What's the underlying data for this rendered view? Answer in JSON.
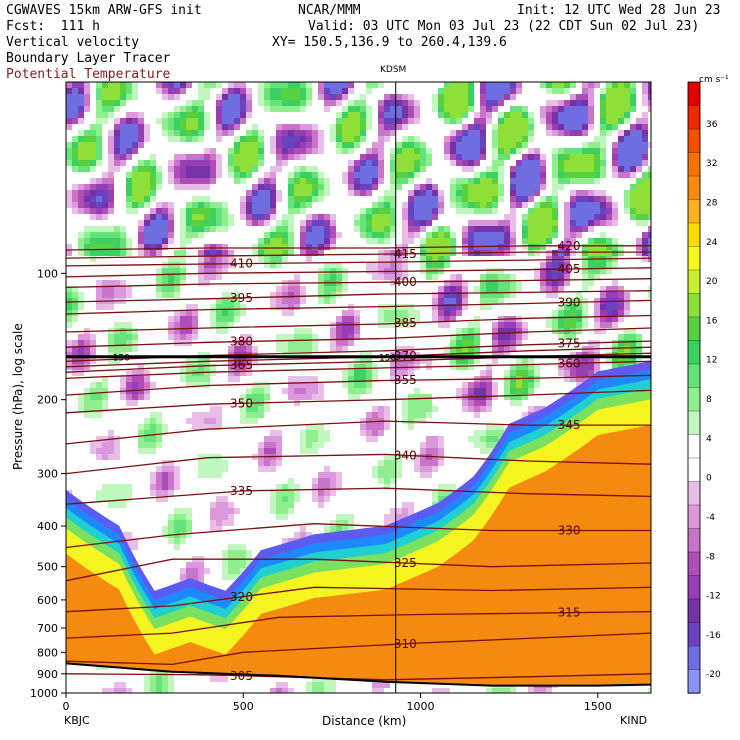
{
  "header": {
    "left_line1": "CGWAVES 15km ARW-GFS init",
    "left_line2": "Fcst:  111 h",
    "left_line3": "Vertical velocity",
    "left_line4": "Boundary Layer Tracer",
    "left_line5": "Potential Temperature",
    "center_line1": "NCAR/MMM",
    "init_text": "Init: 12 UTC Wed 28 Jun 23",
    "valid_text": "Valid: 03 UTC Mon 03 Jul 23 (22 CDT Sun 02 Jul 23)",
    "xy_text": "XY= 150.5,136.9 to 260.4,139.6",
    "station_mid": "KDSM",
    "station_left": "KBJC",
    "station_right": "KIND"
  },
  "chart_data": {
    "type": "heatmap",
    "xlabel": "Distance (km)",
    "ylabel": "Pressure (hPa), log scale",
    "xlim": [
      0,
      1650
    ],
    "x_ticks": [
      0,
      500,
      1000,
      1500
    ],
    "ylim_hpa": [
      1000,
      35
    ],
    "y_ticks": [
      100,
      200,
      300,
      400,
      500,
      600,
      700,
      800,
      900,
      1000
    ],
    "y_log": true,
    "vertical_marker_km": 930,
    "horizontal_line_hpa": 158,
    "horizontal_line_label": "150",
    "colorbar": {
      "unit": "cm s⁻¹",
      "tick_labels": [
        "36",
        "32",
        "28",
        "24",
        "20",
        "16",
        "12",
        "8",
        "4",
        "0",
        "-4",
        "-8",
        "-12",
        "-16",
        "-20"
      ],
      "colors": [
        "#e00000",
        "#ee2800",
        "#f54f00",
        "#f87000",
        "#fb8a10",
        "#fdb020",
        "#fcdc00",
        "#f8f820",
        "#c8f030",
        "#8ee038",
        "#58d040",
        "#3cd060",
        "#66e27a",
        "#8fef8f",
        "#bff7bf",
        "#ffffff",
        "#ffffff",
        "#e8bde8",
        "#dc98dc",
        "#c874c8",
        "#b04cb8",
        "#9440b4",
        "#7434a8",
        "#6a44c0",
        "#6e6ee0",
        "#8a92f2"
      ]
    },
    "theta_contours": [
      {
        "label": "305",
        "points": [
          [
            0,
            900
          ],
          [
            400,
            905
          ],
          [
            900,
            930
          ],
          [
            1300,
            915
          ],
          [
            1650,
            900
          ]
        ]
      },
      {
        "label": "310",
        "points": [
          [
            0,
            840
          ],
          [
            300,
            855
          ],
          [
            500,
            800
          ],
          [
            1000,
            760
          ],
          [
            1650,
            720
          ]
        ]
      },
      {
        "label": "315",
        "points": [
          [
            0,
            740
          ],
          [
            300,
            720
          ],
          [
            600,
            660
          ],
          [
            1000,
            650
          ],
          [
            1650,
            640
          ]
        ]
      },
      {
        "label": "320",
        "points": [
          [
            0,
            640
          ],
          [
            300,
            620
          ],
          [
            700,
            560
          ],
          [
            1200,
            570
          ],
          [
            1650,
            560
          ]
        ]
      },
      {
        "label": "325",
        "points": [
          [
            0,
            540
          ],
          [
            300,
            480
          ],
          [
            700,
            480
          ],
          [
            1200,
            500
          ],
          [
            1650,
            490
          ]
        ]
      },
      {
        "label": "330",
        "points": [
          [
            0,
            450
          ],
          [
            300,
            420
          ],
          [
            700,
            395
          ],
          [
            1200,
            410
          ],
          [
            1650,
            410
          ]
        ]
      },
      {
        "label": "335",
        "points": [
          [
            0,
            355
          ],
          [
            500,
            330
          ],
          [
            900,
            325
          ],
          [
            1300,
            335
          ],
          [
            1650,
            340
          ]
        ]
      },
      {
        "label": "340",
        "points": [
          [
            0,
            300
          ],
          [
            400,
            275
          ],
          [
            900,
            270
          ],
          [
            1300,
            280
          ],
          [
            1650,
            285
          ]
        ]
      },
      {
        "label": "345",
        "points": [
          [
            0,
            255
          ],
          [
            400,
            235
          ],
          [
            900,
            225
          ],
          [
            1300,
            230
          ],
          [
            1650,
            230
          ]
        ]
      },
      {
        "label": "350",
        "points": [
          [
            0,
            215
          ],
          [
            400,
            205
          ],
          [
            900,
            200
          ],
          [
            1300,
            195
          ],
          [
            1650,
            190
          ]
        ]
      },
      {
        "label": "355",
        "points": [
          [
            0,
            195
          ],
          [
            400,
            185
          ],
          [
            900,
            180
          ],
          [
            1300,
            178
          ],
          [
            1650,
            175
          ]
        ]
      },
      {
        "label": "360",
        "points": [
          [
            0,
            178
          ],
          [
            400,
            172
          ],
          [
            900,
            168
          ],
          [
            1300,
            165
          ],
          [
            1650,
            162
          ]
        ]
      },
      {
        "label": "365",
        "points": [
          [
            0,
            172
          ],
          [
            400,
            166
          ],
          [
            900,
            162
          ],
          [
            1300,
            158
          ],
          [
            1650,
            155
          ]
        ]
      },
      {
        "label": "370",
        "points": [
          [
            0,
            167
          ],
          [
            400,
            162
          ],
          [
            900,
            158
          ],
          [
            1300,
            153
          ],
          [
            1650,
            150
          ]
        ]
      },
      {
        "label": "375",
        "points": [
          [
            0,
            162
          ],
          [
            400,
            157
          ],
          [
            900,
            153
          ],
          [
            1300,
            148
          ],
          [
            1650,
            145
          ]
        ]
      },
      {
        "label": "380",
        "points": [
          [
            0,
            150
          ],
          [
            400,
            146
          ],
          [
            900,
            143
          ],
          [
            1300,
            138
          ],
          [
            1650,
            135
          ]
        ]
      },
      {
        "label": "385",
        "points": [
          [
            0,
            138
          ],
          [
            400,
            135
          ],
          [
            900,
            132
          ],
          [
            1300,
            128
          ],
          [
            1650,
            126
          ]
        ]
      },
      {
        "label": "390",
        "points": [
          [
            0,
            125
          ],
          [
            400,
            122
          ],
          [
            900,
            120
          ],
          [
            1300,
            118
          ],
          [
            1650,
            116
          ]
        ]
      },
      {
        "label": "395",
        "points": [
          [
            0,
            117
          ],
          [
            400,
            115
          ],
          [
            900,
            112
          ],
          [
            1300,
            111
          ],
          [
            1650,
            110
          ]
        ]
      },
      {
        "label": "400",
        "points": [
          [
            0,
            108
          ],
          [
            400,
            106
          ],
          [
            900,
            105
          ],
          [
            1300,
            104
          ],
          [
            1650,
            103
          ]
        ]
      },
      {
        "label": "405",
        "points": [
          [
            0,
            102
          ],
          [
            400,
            100
          ],
          [
            900,
            99
          ],
          [
            1300,
            98
          ],
          [
            1650,
            97
          ]
        ]
      },
      {
        "label": "410",
        "points": [
          [
            0,
            96
          ],
          [
            400,
            95
          ],
          [
            900,
            94
          ],
          [
            1300,
            93
          ],
          [
            1650,
            92
          ]
        ]
      },
      {
        "label": "415",
        "points": [
          [
            0,
            92
          ],
          [
            400,
            91
          ],
          [
            900,
            90
          ],
          [
            1300,
            89
          ],
          [
            1650,
            89
          ]
        ]
      },
      {
        "label": "420",
        "points": [
          [
            0,
            88
          ],
          [
            400,
            87
          ],
          [
            900,
            87
          ],
          [
            1300,
            86
          ],
          [
            1650,
            86
          ]
        ]
      }
    ],
    "boundary_layer_top": [
      [
        0,
        345
      ],
      [
        150,
        420
      ],
      [
        250,
        600
      ],
      [
        350,
        560
      ],
      [
        450,
        600
      ],
      [
        550,
        480
      ],
      [
        700,
        440
      ],
      [
        900,
        420
      ],
      [
        1050,
        370
      ],
      [
        1150,
        320
      ],
      [
        1250,
        240
      ],
      [
        1350,
        220
      ],
      [
        1500,
        180
      ],
      [
        1650,
        170
      ]
    ],
    "terrain_hpa": [
      [
        0,
        850
      ],
      [
        300,
        890
      ],
      [
        600,
        910
      ],
      [
        900,
        940
      ],
      [
        1200,
        960
      ],
      [
        1500,
        960
      ],
      [
        1650,
        955
      ]
    ]
  }
}
